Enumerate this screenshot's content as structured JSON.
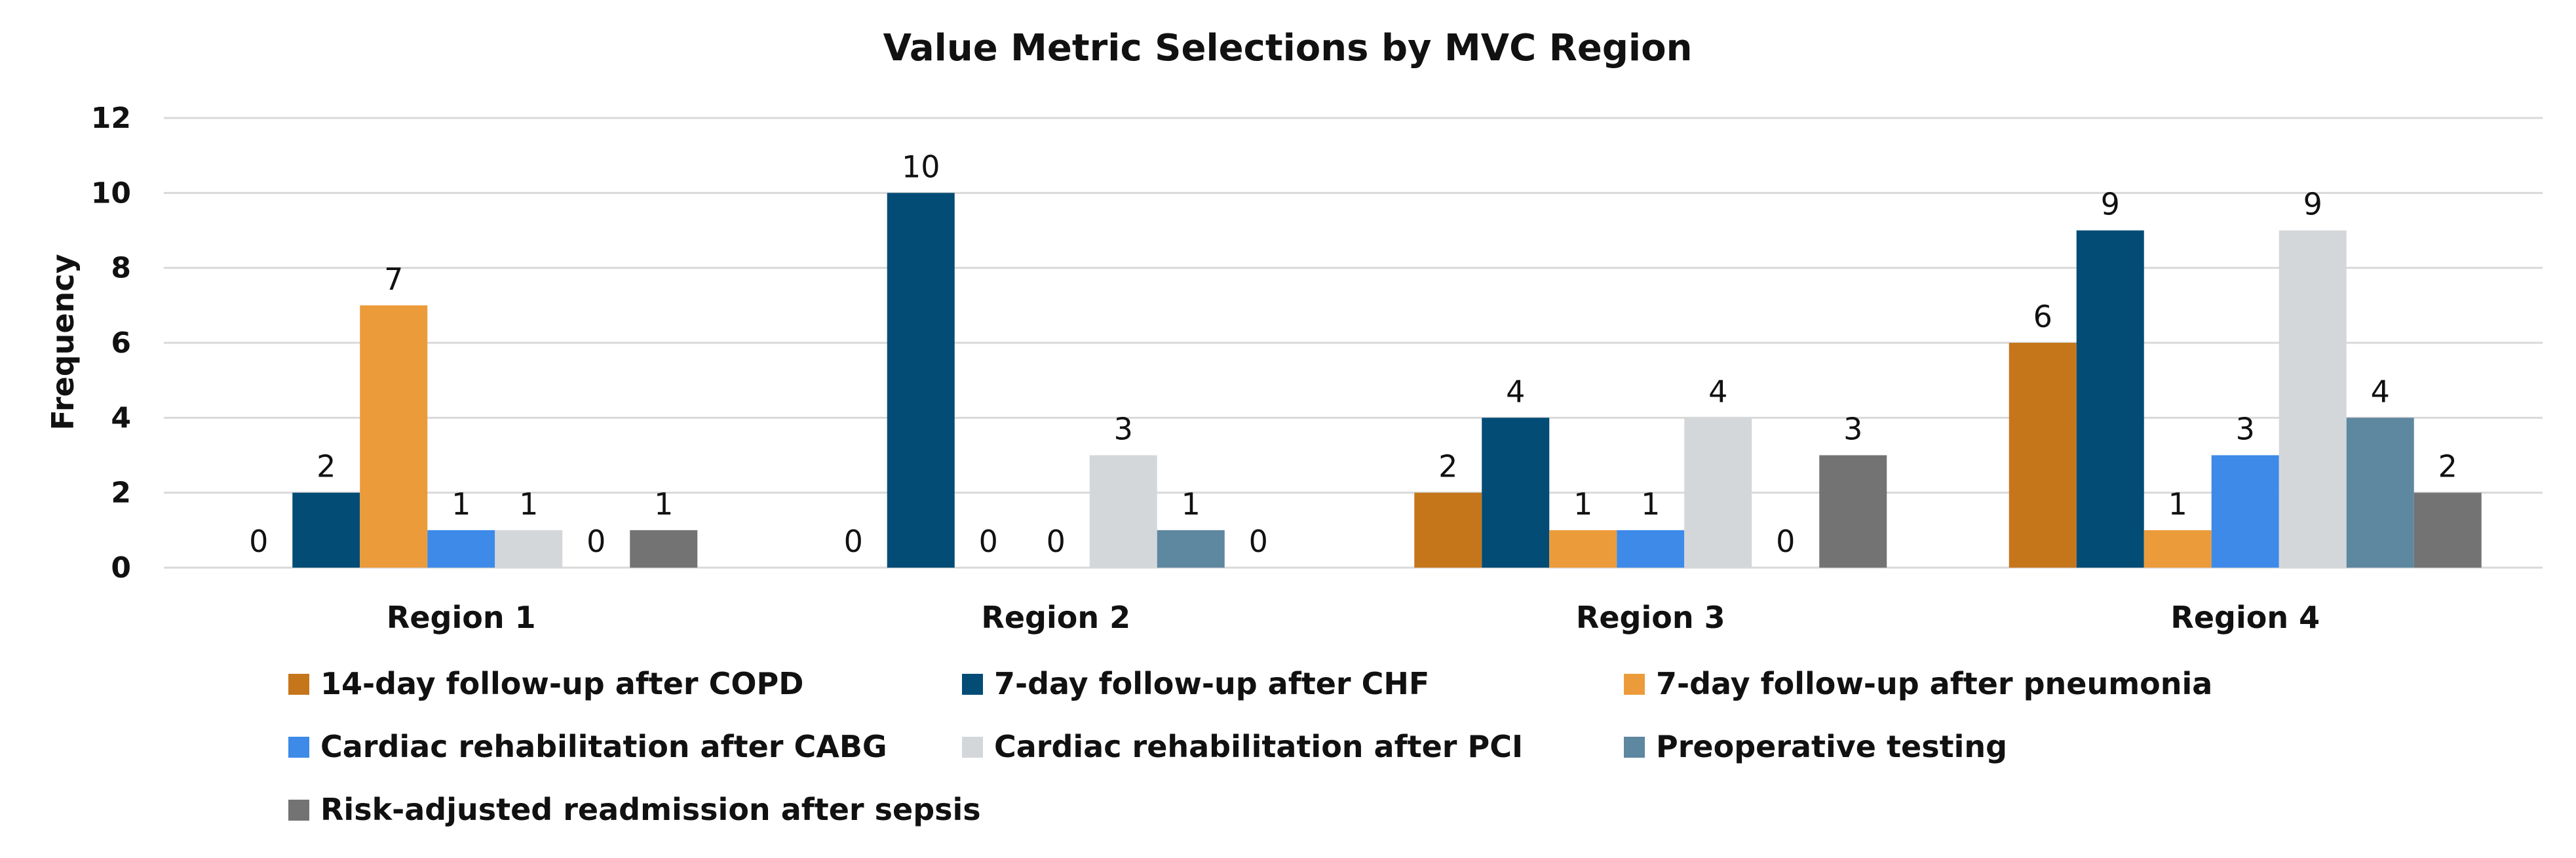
{
  "chart_data": {
    "type": "bar",
    "title": "Value Metric Selections by MVC Region",
    "xlabel": "",
    "ylabel": "Frequency",
    "ylim": [
      0,
      12
    ],
    "yticks": [
      "0",
      "2",
      "4",
      "6",
      "8",
      "10",
      "12"
    ],
    "grid": true,
    "legend_position": "bottom",
    "categories": [
      "Region 1",
      "Region 2",
      "Region 3",
      "Region 4"
    ],
    "series": [
      {
        "name": "14-day follow-up after COPD",
        "color": "#c5761b",
        "values": [
          0,
          0,
          2,
          6
        ]
      },
      {
        "name": "7-day follow-up after CHF",
        "color": "#024c76",
        "values": [
          2,
          10,
          4,
          9
        ]
      },
      {
        "name": "7-day follow-up after pneumonia",
        "color": "#ec9b3b",
        "values": [
          7,
          0,
          1,
          1
        ]
      },
      {
        "name": "Cardiac rehabilitation after CABG",
        "color": "#3d8ae8",
        "values": [
          1,
          0,
          1,
          3
        ]
      },
      {
        "name": "Cardiac rehabilitation after PCI",
        "color": "#d4d7da",
        "values": [
          1,
          3,
          4,
          9
        ]
      },
      {
        "name": "Preoperative testing",
        "color": "#5e87a0",
        "values": [
          0,
          1,
          0,
          4
        ]
      },
      {
        "name": "Risk-adjusted readmission after sepsis",
        "color": "#737373",
        "values": [
          1,
          0,
          3,
          2
        ]
      }
    ]
  }
}
